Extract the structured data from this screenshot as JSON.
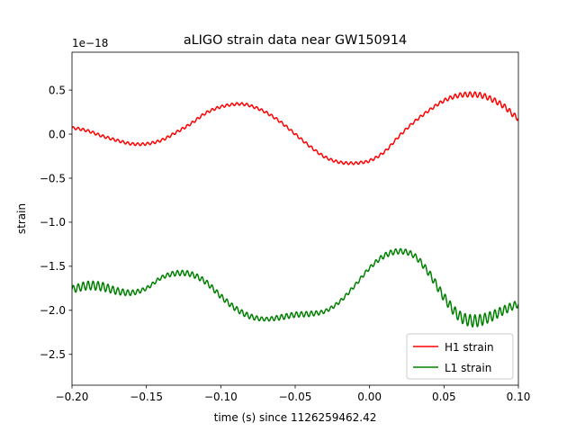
{
  "chart_data": {
    "type": "line",
    "title": "aLIGO strain data near GW150914",
    "xlabel": "time (s) since 1126259462.42",
    "ylabel": "strain",
    "offset_label": "1e−18",
    "xlim": [
      -0.2,
      0.1
    ],
    "ylim": [
      -2.85,
      0.93
    ],
    "x_ticks": [
      -0.2,
      -0.15,
      -0.1,
      -0.05,
      0.0,
      0.05,
      0.1
    ],
    "x_tick_labels": [
      "−0.20",
      "−0.15",
      "−0.10",
      "−0.05",
      "0.00",
      "0.05",
      "0.10"
    ],
    "y_ticks": [
      0.5,
      0.0,
      -0.5,
      -1.0,
      -1.5,
      -2.0,
      -2.5
    ],
    "y_tick_labels": [
      "0.5",
      "0.0",
      "−0.5",
      "−1.0",
      "−1.5",
      "−2.0",
      "−2.5"
    ],
    "grid": false,
    "legend_position": "bottom-right",
    "series": [
      {
        "name": "H1 strain",
        "color": "#ff0000",
        "x": [
          -0.2,
          -0.19,
          -0.18,
          -0.17,
          -0.16,
          -0.15,
          -0.14,
          -0.13,
          -0.12,
          -0.11,
          -0.1,
          -0.09,
          -0.085,
          -0.08,
          -0.07,
          -0.06,
          -0.05,
          -0.04,
          -0.03,
          -0.02,
          -0.01,
          -0.005,
          0.0,
          0.01,
          0.02,
          0.03,
          0.04,
          0.05,
          0.06,
          0.07,
          0.075,
          0.08,
          0.09,
          0.1
        ],
        "values": [
          0.07,
          0.04,
          -0.02,
          -0.07,
          -0.11,
          -0.11,
          -0.07,
          0.02,
          0.12,
          0.24,
          0.31,
          0.34,
          0.34,
          0.32,
          0.25,
          0.14,
          0.0,
          -0.14,
          -0.26,
          -0.32,
          -0.33,
          -0.32,
          -0.3,
          -0.2,
          -0.02,
          0.14,
          0.27,
          0.38,
          0.44,
          0.45,
          0.44,
          0.41,
          0.32,
          0.18
        ],
        "oscillation_amplitude": [
          0.015,
          0.015,
          0.015,
          0.015,
          0.015,
          0.015,
          0.015,
          0.015,
          0.015,
          0.015,
          0.015,
          0.015,
          0.015,
          0.015,
          0.015,
          0.015,
          0.015,
          0.015,
          0.015,
          0.015,
          0.015,
          0.015,
          0.015,
          0.015,
          0.015,
          0.015,
          0.015,
          0.02,
          0.025,
          0.03,
          0.03,
          0.03,
          0.03,
          0.03
        ]
      },
      {
        "name": "L1 strain",
        "color": "#008000",
        "x": [
          -0.2,
          -0.19,
          -0.18,
          -0.17,
          -0.16,
          -0.15,
          -0.14,
          -0.13,
          -0.12,
          -0.11,
          -0.1,
          -0.09,
          -0.08,
          -0.07,
          -0.06,
          -0.05,
          -0.04,
          -0.03,
          -0.02,
          -0.01,
          0.0,
          0.01,
          0.02,
          0.03,
          0.04,
          0.05,
          0.06,
          0.07,
          0.08,
          0.09,
          0.1
        ],
        "values": [
          -1.76,
          -1.72,
          -1.73,
          -1.78,
          -1.8,
          -1.75,
          -1.63,
          -1.58,
          -1.59,
          -1.68,
          -1.84,
          -1.98,
          -2.07,
          -2.1,
          -2.08,
          -2.05,
          -2.04,
          -2.01,
          -1.9,
          -1.72,
          -1.52,
          -1.38,
          -1.33,
          -1.38,
          -1.58,
          -1.85,
          -2.06,
          -2.12,
          -2.08,
          -2.0,
          -1.93
        ],
        "oscillation_amplitude": [
          0.04,
          0.05,
          0.05,
          0.04,
          0.03,
          0.02,
          0.02,
          0.03,
          0.03,
          0.03,
          0.03,
          0.03,
          0.03,
          0.02,
          0.03,
          0.03,
          0.03,
          0.02,
          0.02,
          0.02,
          0.02,
          0.03,
          0.03,
          0.03,
          0.04,
          0.05,
          0.06,
          0.07,
          0.06,
          0.05,
          0.04
        ]
      }
    ]
  }
}
